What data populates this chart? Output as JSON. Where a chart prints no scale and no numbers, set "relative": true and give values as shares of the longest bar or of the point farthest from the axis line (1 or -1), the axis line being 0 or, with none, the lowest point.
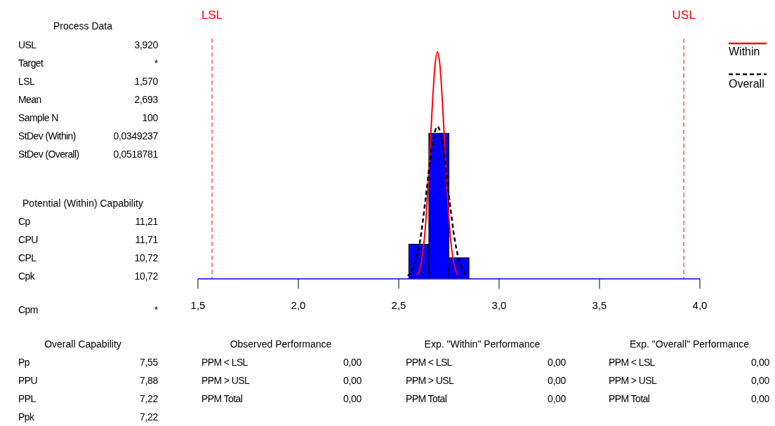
{
  "chart_data": {
    "type": "histogram",
    "relative": true,
    "bins": [
      2.55,
      2.65,
      2.75,
      2.85
    ],
    "values": [
      0.15,
      0.64,
      0.09
    ],
    "color": "#0000ff",
    "series": [
      {
        "type": "line",
        "name": "Within",
        "color": "#ff0000",
        "line_style": "solid",
        "x": [
          2.59,
          2.61,
          2.63,
          2.65,
          2.665,
          2.68,
          2.693,
          2.705,
          2.72,
          2.735,
          2.755,
          2.775,
          2.795
        ],
        "values": [
          0.013,
          0.059,
          0.196,
          0.468,
          0.725,
          0.933,
          1,
          0.943,
          0.741,
          0.485,
          0.206,
          0.063,
          0.014
        ]
      },
      {
        "type": "line",
        "name": "Overall",
        "color": "#000000",
        "line_style": "dashed",
        "x": [
          2.545,
          2.575,
          2.605,
          2.635,
          2.665,
          2.693,
          2.72,
          2.75,
          2.78,
          2.81,
          2.84
        ],
        "values": [
          0.011,
          0.051,
          0.159,
          0.359,
          0.579,
          0.67,
          0.586,
          0.366,
          0.164,
          0.053,
          0.012
        ]
      }
    ],
    "xlim": [
      1.5,
      4.0
    ],
    "xticks": [
      {
        "value": 1.5,
        "label": "1,5"
      },
      {
        "value": 2.0,
        "label": "2,0"
      },
      {
        "value": 2.5,
        "label": "2,5"
      },
      {
        "value": 3.0,
        "label": "3,0"
      },
      {
        "value": 3.5,
        "label": "3,5"
      },
      {
        "value": 4.0,
        "label": "4,0"
      }
    ],
    "ref_lines": [
      {
        "axis": "x",
        "value": 1.57,
        "label": "LSL",
        "color": "#ff0000",
        "line_style": "dashed"
      },
      {
        "axis": "x",
        "value": 3.92,
        "label": "USL",
        "color": "#ff0000",
        "line_style": "dashed"
      }
    ],
    "legend": "top right",
    "grid": false,
    "annotations": [
      "Process Data",
      "USL",
      "3,920",
      "Target",
      "*",
      "LSL",
      "1,570",
      "Mean",
      "2,693",
      "Sample N",
      "100",
      "StDev (Within)",
      "0,0349237",
      "StDev (Overall)",
      "0,0518781",
      "Potential (Within) Capability",
      "Cp",
      "11,21",
      "CPU",
      "11,71",
      "CPL",
      "10,72",
      "Cpk",
      "10,72",
      "Cpm",
      "*",
      "Overall Capability",
      "Pp",
      "7,55",
      "PPU",
      "7,88",
      "PPL",
      "7,22",
      "Ppk",
      "7,22",
      "Observed Performance",
      "PPM < LSL",
      "0,00",
      "PPM > USL",
      "0,00",
      "PPM Total",
      "0,00",
      "Exp. \"Within\" Performance",
      "PPM < LSL",
      "0,00",
      "PPM > USL",
      "0,00",
      "PPM Total",
      "0,00",
      "Exp. \"Overall\" Performance",
      "PPM < LSL",
      "0,00",
      "PPM > USL",
      "0,00",
      "PPM Total",
      "0,00"
    ]
  }
}
